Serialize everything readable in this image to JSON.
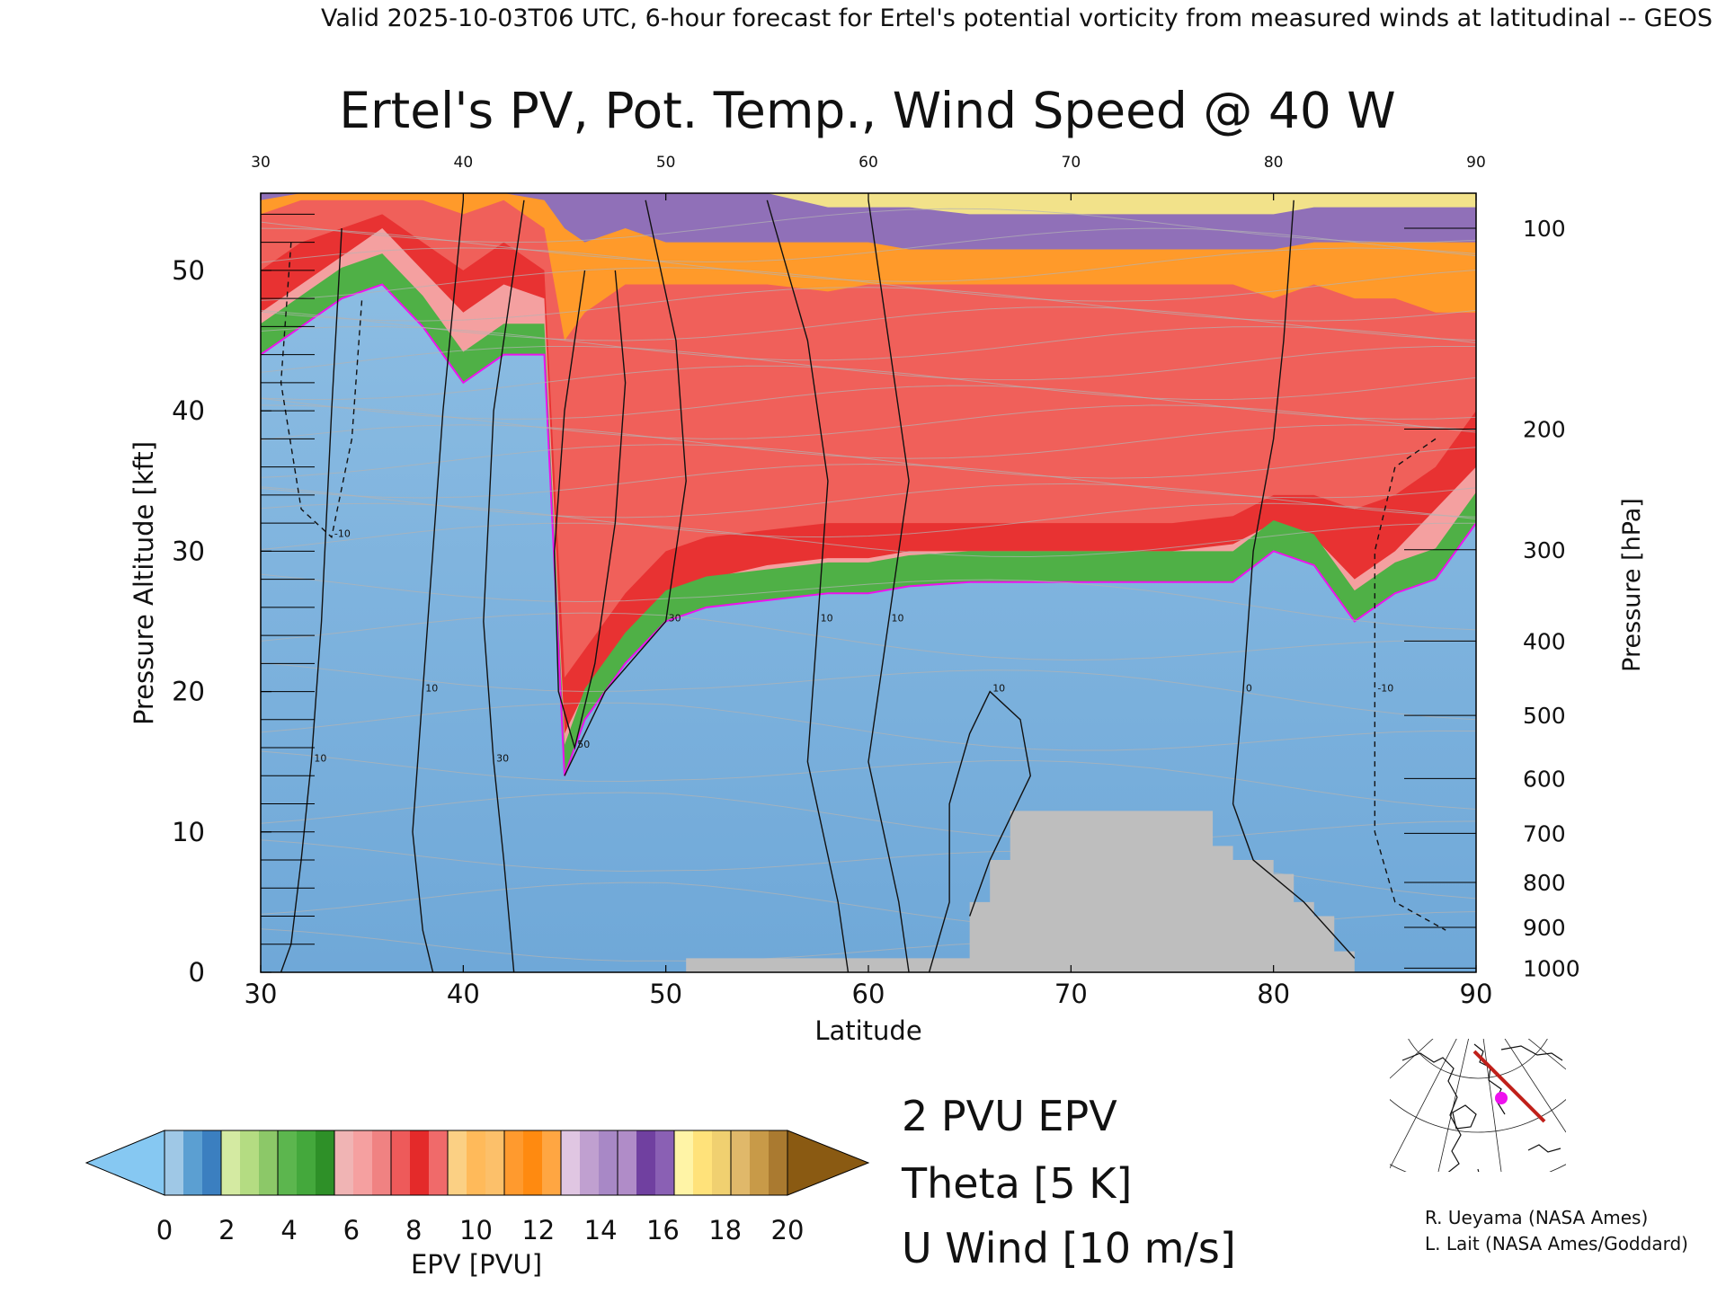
{
  "header": {
    "valid_line": "Valid 2025-10-03T06 UTC, 6-hour forecast for Ertel's potential vorticity from measured winds at latitudinal -- GEOS"
  },
  "chart_data": {
    "type": "heatmap",
    "title": "Ertel's PV, Pot. Temp., Wind Speed @ 40 W",
    "xlabel": "Latitude",
    "ylabel_left": "Pressure Altitude [kft]",
    "ylabel_right": "Pressure [hPa]",
    "xlim": [
      30,
      90
    ],
    "ylim": [
      0,
      55.5
    ],
    "x_ticks": [
      "30",
      "40",
      "50",
      "60",
      "70",
      "80",
      "90"
    ],
    "y_ticks_left": [
      "0",
      "10",
      "20",
      "30",
      "40",
      "50"
    ],
    "y_ticks_left_values": [
      0,
      10,
      20,
      30,
      40,
      50
    ],
    "pressure_ticks": [
      {
        "label": "100",
        "kft": 53.0
      },
      {
        "label": "200",
        "kft": 38.7
      },
      {
        "label": "300",
        "kft": 30.1
      },
      {
        "label": "400",
        "kft": 23.6
      },
      {
        "label": "500",
        "kft": 18.3
      },
      {
        "label": "600",
        "kft": 13.8
      },
      {
        "label": "700",
        "kft": 9.9
      },
      {
        "label": "800",
        "kft": 6.4
      },
      {
        "label": "900",
        "kft": 3.2
      },
      {
        "label": "1000",
        "kft": 0.3
      }
    ],
    "epv_layers_lower_kft": {
      "lat": [
        30,
        32,
        34,
        36,
        38,
        40,
        42,
        44,
        45,
        46,
        48,
        50,
        52,
        55,
        58,
        60,
        62,
        65,
        68,
        70,
        72,
        75,
        78,
        80,
        82,
        84,
        86,
        88,
        90
      ],
      "pv2": [
        44,
        46,
        48,
        49,
        46,
        42,
        44,
        44,
        14,
        18,
        22,
        25,
        26,
        26.5,
        27,
        27,
        27.5,
        27.8,
        27.8,
        27.8,
        27.8,
        27.8,
        27.8,
        30,
        29,
        25,
        27,
        28,
        32
      ],
      "pv6": [
        47,
        49,
        51,
        53,
        50,
        47,
        49,
        48,
        17,
        20,
        24,
        27,
        28,
        29,
        29.5,
        29.5,
        30,
        30,
        30,
        30,
        30,
        30,
        30.5,
        32,
        31,
        28,
        30,
        33,
        36
      ],
      "pv8": [
        50,
        52,
        53,
        54,
        52,
        50,
        52,
        50,
        21,
        23,
        27,
        30,
        31,
        31.5,
        32,
        32,
        32,
        32,
        32,
        32,
        32,
        32,
        32.5,
        34,
        34,
        33,
        34,
        36,
        40
      ],
      "pv12": [
        54,
        55,
        55,
        55,
        55,
        54,
        55,
        53,
        45,
        47,
        49,
        49,
        49,
        49,
        48.5,
        49,
        49,
        49,
        49,
        49,
        49,
        49,
        49,
        48,
        49,
        48,
        48,
        47,
        47
      ],
      "pv14": [
        55,
        55.5,
        55.5,
        55.5,
        55.5,
        55.5,
        55.5,
        55,
        53,
        52,
        53,
        52,
        52,
        52,
        52,
        52,
        51.5,
        51.5,
        51.5,
        51.5,
        51.5,
        51.5,
        51.5,
        51.5,
        52,
        52,
        52,
        52,
        52
      ],
      "pv18": [
        55.5,
        55.5,
        55.5,
        55.5,
        55.5,
        55.5,
        55.5,
        55.5,
        55.5,
        55.5,
        55.5,
        55.5,
        55.5,
        55.5,
        54.5,
        54.5,
        54.5,
        54,
        54,
        54,
        54,
        54,
        54,
        54,
        54.5,
        54.5,
        54.5,
        54.5,
        54.5
      ]
    },
    "terrain_kft": {
      "lat": [
        30,
        51,
        51,
        65,
        65,
        66,
        66,
        67,
        67,
        77,
        77,
        78,
        78,
        80,
        80,
        81,
        81,
        82,
        82,
        83,
        83,
        84,
        84,
        90
      ],
      "top": [
        0,
        0,
        1,
        1,
        5,
        5,
        8,
        8,
        11.5,
        11.5,
        9,
        9,
        8,
        8,
        7,
        7,
        5,
        5,
        4,
        4,
        1.5,
        1.5,
        0,
        0
      ]
    },
    "u_wind_contours": [
      {
        "label": "10",
        "points": [
          [
            34,
            53
          ],
          [
            33.5,
            40
          ],
          [
            33,
            25
          ],
          [
            32.5,
            15
          ],
          [
            32,
            8
          ],
          [
            31.5,
            2
          ],
          [
            31,
            0
          ]
        ]
      },
      {
        "label": "10",
        "points": [
          [
            40,
            55
          ],
          [
            39,
            40
          ],
          [
            38.5,
            30
          ],
          [
            38,
            20
          ],
          [
            37.5,
            10
          ],
          [
            38,
            3
          ],
          [
            38.5,
            0
          ]
        ]
      },
      {
        "label": "30",
        "points": [
          [
            43,
            55
          ],
          [
            41.5,
            40
          ],
          [
            41,
            25
          ],
          [
            41.5,
            15
          ],
          [
            42,
            8
          ],
          [
            42.5,
            0
          ]
        ]
      },
      {
        "label": "50",
        "points": [
          [
            46,
            50
          ],
          [
            45,
            40
          ],
          [
            44.5,
            30
          ],
          [
            44.7,
            20
          ],
          [
            45.5,
            16
          ],
          [
            46.5,
            22
          ],
          [
            47.5,
            32
          ],
          [
            48,
            42
          ],
          [
            47.5,
            50
          ]
        ]
      },
      {
        "label": "30",
        "points": [
          [
            49,
            55
          ],
          [
            50.5,
            45
          ],
          [
            51,
            35
          ],
          [
            50,
            25
          ],
          [
            47,
            20
          ],
          [
            45,
            14
          ]
        ]
      },
      {
        "label": "10",
        "points": [
          [
            55,
            55
          ],
          [
            57,
            45
          ],
          [
            58,
            35
          ],
          [
            57.5,
            25
          ],
          [
            57,
            15
          ],
          [
            58.5,
            5
          ],
          [
            59,
            0
          ]
        ]
      },
      {
        "label": "10",
        "points": [
          [
            60,
            55
          ],
          [
            61,
            45
          ],
          [
            62,
            35
          ],
          [
            61,
            25
          ],
          [
            60,
            15
          ],
          [
            61.5,
            5
          ],
          [
            62,
            0
          ]
        ]
      },
      {
        "label": "10",
        "points": [
          [
            63,
            0
          ],
          [
            64,
            5
          ],
          [
            64,
            12
          ],
          [
            65,
            17
          ],
          [
            66,
            20
          ],
          [
            67.5,
            18
          ],
          [
            68,
            14
          ],
          [
            66,
            8
          ],
          [
            65,
            4
          ]
        ]
      },
      {
        "label": "0",
        "points": [
          [
            81,
            55
          ],
          [
            80.5,
            45
          ],
          [
            80,
            38
          ],
          [
            79,
            30
          ],
          [
            78.5,
            20
          ],
          [
            78,
            12
          ],
          [
            79,
            8
          ],
          [
            81.5,
            5
          ],
          [
            84,
            1
          ]
        ]
      },
      {
        "label": "-10",
        "points": [
          [
            31.5,
            52
          ],
          [
            31,
            42
          ],
          [
            32,
            33
          ],
          [
            33.5,
            31
          ],
          [
            34.5,
            38
          ],
          [
            35,
            48
          ]
        ],
        "dashed": true
      },
      {
        "label": "-10",
        "points": [
          [
            88,
            38
          ],
          [
            86,
            36
          ],
          [
            85,
            30
          ],
          [
            85,
            20
          ],
          [
            85,
            10
          ],
          [
            86,
            5
          ],
          [
            88.5,
            3
          ]
        ],
        "dashed": true
      }
    ],
    "legend": {
      "entries": [
        {
          "label": "2 PVU EPV",
          "color": "#ee11ee"
        },
        {
          "label": "Theta [5 K]",
          "color": "#b4b4b4"
        },
        {
          "label": "U Wind [10 m/s]",
          "color": "#111111"
        }
      ]
    },
    "colorbar": {
      "label": "EPV [PVU]",
      "ticks": [
        "0",
        "2",
        "4",
        "6",
        "8",
        "10",
        "12",
        "14",
        "16",
        "18",
        "20"
      ],
      "colors": [
        [
          "#9fc8e6",
          "#5b9fd2",
          "#3b7fc0"
        ],
        [
          "#d4eaa2",
          "#b4dc82",
          "#8cc868"
        ],
        [
          "#5cb64e",
          "#44a83c",
          "#2e9028"
        ],
        [
          "#f0b4b4",
          "#f5a0a0",
          "#f08282"
        ],
        [
          "#ee5a5a",
          "#e42a2a",
          "#f06a6a"
        ],
        [
          "#fbd084",
          "#ffba5a",
          "#fcc06a"
        ],
        [
          "#ff9a2e",
          "#ff8a10",
          "#ffa642"
        ],
        [
          "#e0c6e2",
          "#c0a0d0",
          "#a888c6"
        ],
        [
          "#b08cc8",
          "#7040a0",
          "#8a60b4"
        ],
        [
          "#fff4a6",
          "#ffe27a",
          "#f0d070"
        ],
        [
          "#e0b86a",
          "#c89a48",
          "#aa7a30"
        ]
      ],
      "under_color": "#86c8f2",
      "over_color": "#8a5a12"
    },
    "grid": false
  },
  "credits": {
    "line1": "R. Ueyama (NASA Ames)",
    "line2": "L. Lait (NASA Ames/Goddard)"
  },
  "inset_map": {
    "track_color": "#c0201a",
    "marker_color": "#ee11ee"
  }
}
